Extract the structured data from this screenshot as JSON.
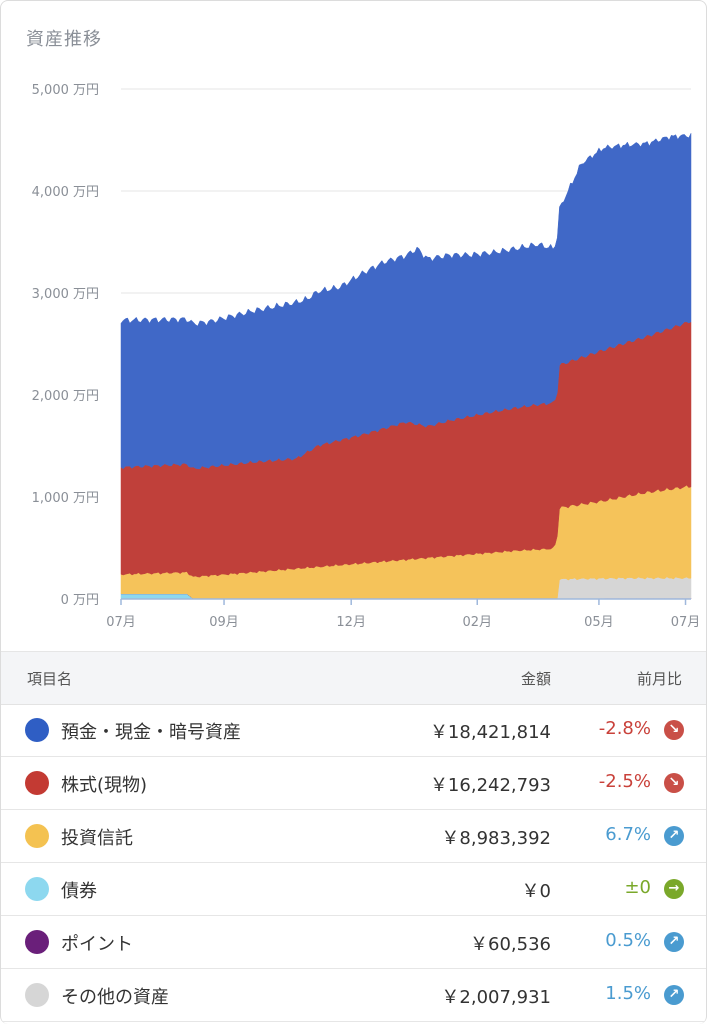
{
  "title": "資産推移",
  "chart_data": {
    "type": "area",
    "stacked": true,
    "y_unit": "万円",
    "yticks": [
      "0 万円",
      "1,000 万円",
      "2,000 万円",
      "3,000 万円",
      "4,000 万円",
      "5,000 万円"
    ],
    "ylim": [
      0,
      5000
    ],
    "xticks": [
      "07月",
      "09月",
      "12月",
      "02月",
      "05月",
      "07月"
    ],
    "grid": true,
    "series": [
      {
        "name": "債券",
        "color": "#8dd8ef",
        "points": [
          [
            0,
            50
          ],
          [
            6,
            50
          ],
          [
            6.6,
            0
          ],
          [
            52,
            0
          ]
        ]
      },
      {
        "name": "ポイント",
        "color": "#6a1f7a",
        "points": [
          [
            0,
            2
          ],
          [
            52,
            6
          ]
        ]
      },
      {
        "name": "その他の資産",
        "color": "#d6d6d6",
        "points": [
          [
            0,
            0
          ],
          [
            39.9,
            0
          ],
          [
            40,
            190
          ],
          [
            46,
            200
          ],
          [
            52,
            200
          ]
        ]
      },
      {
        "name": "投資信託",
        "color": "#f5c35a",
        "points": [
          [
            0,
            190
          ],
          [
            6,
            210
          ],
          [
            12,
            260
          ],
          [
            20,
            330
          ],
          [
            28,
            400
          ],
          [
            36,
            470
          ],
          [
            39.5,
            490
          ],
          [
            40,
            700
          ],
          [
            44,
            760
          ],
          [
            48,
            840
          ],
          [
            52,
            900
          ]
        ]
      },
      {
        "name": "株式(現物)",
        "color": "#c0403a",
        "points": [
          [
            0,
            1050
          ],
          [
            6,
            1060
          ],
          [
            12,
            1080
          ],
          [
            16,
            1080
          ],
          [
            18,
            1190
          ],
          [
            22,
            1260
          ],
          [
            26,
            1350
          ],
          [
            28,
            1290
          ],
          [
            30,
            1330
          ],
          [
            34,
            1380
          ],
          [
            38,
            1420
          ],
          [
            39.5,
            1430
          ],
          [
            40,
            1400
          ],
          [
            44,
            1480
          ],
          [
            48,
            1530
          ],
          [
            52,
            1620
          ]
        ]
      },
      {
        "name": "預金・現金・暗号資産",
        "color": "#4068c7",
        "points": [
          [
            0,
            1440
          ],
          [
            3,
            1430
          ],
          [
            6,
            1420
          ],
          [
            8,
            1420
          ],
          [
            12,
            1480
          ],
          [
            16,
            1530
          ],
          [
            17,
            1500
          ],
          [
            18,
            1510
          ],
          [
            20,
            1500
          ],
          [
            22,
            1580
          ],
          [
            24,
            1630
          ],
          [
            26,
            1630
          ],
          [
            27,
            1720
          ],
          [
            28,
            1640
          ],
          [
            30,
            1620
          ],
          [
            32,
            1580
          ],
          [
            34,
            1560
          ],
          [
            36,
            1560
          ],
          [
            38,
            1570
          ],
          [
            39.5,
            1510
          ],
          [
            40,
            1530
          ],
          [
            42,
            1900
          ],
          [
            44,
            1980
          ],
          [
            46,
            1940
          ],
          [
            48,
            1890
          ],
          [
            50,
            1880
          ],
          [
            52,
            1820
          ]
        ]
      }
    ]
  },
  "table": {
    "headers": {
      "name": "項目名",
      "amount": "金額",
      "change": "前月比"
    },
    "rows": [
      {
        "name": "預金・現金・暗号資産",
        "amount": "￥18,421,814",
        "change": "-2.8%",
        "trend": "down",
        "color": "#2f5ec4"
      },
      {
        "name": "株式(現物)",
        "amount": "￥16,242,793",
        "change": "-2.5%",
        "trend": "down",
        "color": "#c33a33"
      },
      {
        "name": "投資信託",
        "amount": "￥8,983,392",
        "change": "6.7%",
        "trend": "up",
        "color": "#f4c251"
      },
      {
        "name": "債券",
        "amount": "￥0",
        "change": "±0",
        "trend": "flat",
        "color": "#8dd8ef"
      },
      {
        "name": "ポイント",
        "amount": "￥60,536",
        "change": "0.5%",
        "trend": "up",
        "color": "#6a1f7a"
      },
      {
        "name": "その他の資産",
        "amount": "￥2,007,931",
        "change": "1.5%",
        "trend": "up",
        "color": "#d6d6d6"
      }
    ]
  }
}
